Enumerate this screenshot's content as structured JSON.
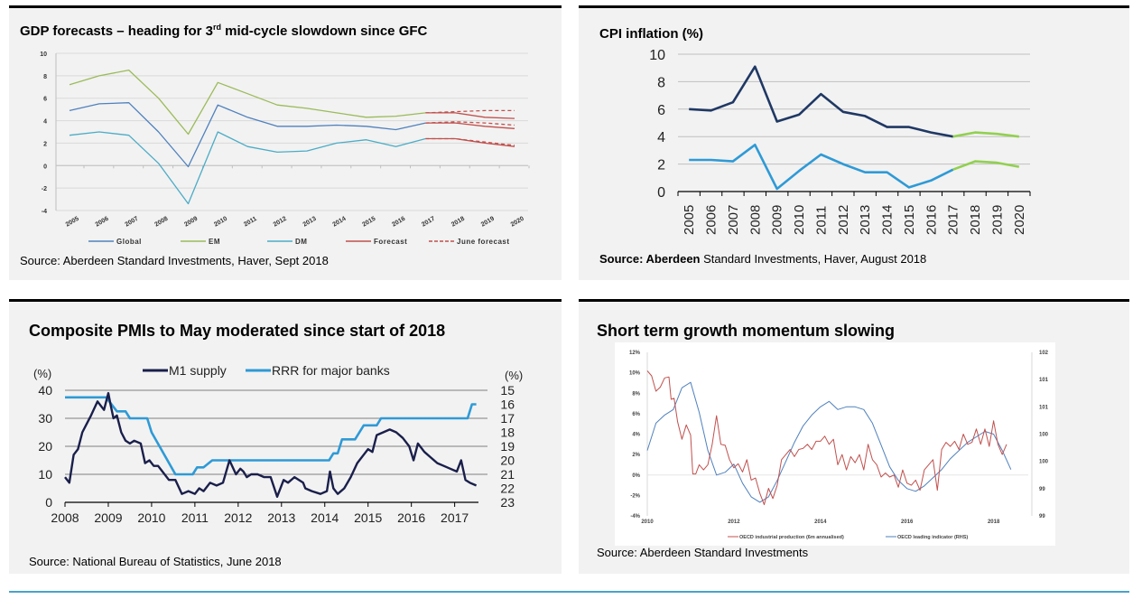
{
  "panels": {
    "gdp": {
      "title_pre": "GDP forecasts – heading for 3",
      "title_sup": "rd",
      "title_post": " mid-cycle slowdown since GFC",
      "source": "Source: Aberdeen Standard Investments, Haver, Sept 2018"
    },
    "cpi": {
      "title": "CPI inflation (%)",
      "source_bold": "Source: Aberdeen",
      "source_rest": " Standard Investments, Haver, August 2018"
    },
    "pmi": {
      "title": "Composite PMIs to May moderated since start of 2018",
      "source": "Source: National Bureau of Statistics, June 2018"
    },
    "momentum": {
      "title": "Short term growth momentum slowing",
      "source": "Source: Aberdeen Standard Investments"
    }
  },
  "colors": {
    "global": "#4f81bd",
    "em": "#9bbb59",
    "dm": "#4bacc6",
    "forecast": "#c0504d",
    "cpi_navy": "#1f3864",
    "cpi_blue": "#2e9ad6",
    "cpi_green": "#92d050",
    "m1": "#1a1f4b",
    "rrr": "#2e9ad6",
    "ip_red": "#c0504d",
    "cli_blue": "#4f81bd",
    "rule": "#4aa3c8"
  },
  "chart_data": [
    {
      "id": "gdp",
      "type": "line",
      "title": "GDP forecasts – heading for 3rd mid-cycle slowdown since GFC",
      "x": [
        "2005",
        "2006",
        "2007",
        "2008",
        "2009",
        "2010",
        "2011",
        "2012",
        "2013",
        "2014",
        "2015",
        "2016",
        "2017",
        "2018",
        "2019",
        "2020"
      ],
      "ylim": [
        -4,
        10
      ],
      "yticks": [
        "-4",
        "-2",
        "0",
        "2",
        "4",
        "6",
        "8",
        "10"
      ],
      "grid": true,
      "legend_position": "bottom",
      "series": [
        {
          "name": "Global",
          "key": "global",
          "values": [
            4.9,
            5.5,
            5.6,
            3.0,
            -0.1,
            5.4,
            4.3,
            3.5,
            3.5,
            3.6,
            3.5,
            3.2,
            3.8,
            null,
            null,
            null
          ]
        },
        {
          "name": "EM",
          "key": "em",
          "values": [
            7.2,
            8.0,
            8.5,
            6.0,
            2.8,
            7.4,
            6.4,
            5.4,
            5.1,
            4.7,
            4.3,
            4.4,
            4.7,
            null,
            null,
            null
          ]
        },
        {
          "name": "DM",
          "key": "dm",
          "values": [
            2.7,
            3.0,
            2.7,
            0.2,
            -3.4,
            3.0,
            1.7,
            1.2,
            1.3,
            2.0,
            2.3,
            1.7,
            2.4,
            null,
            null,
            null
          ]
        },
        {
          "name": "Forecast",
          "key": "forecast",
          "dashed": false,
          "lines": [
            {
              "x_start": "2017",
              "values": [
                4.7,
                4.7,
                4.3,
                4.2
              ]
            },
            {
              "x_start": "2017",
              "values": [
                3.8,
                3.8,
                3.5,
                3.3
              ]
            },
            {
              "x_start": "2017",
              "values": [
                2.4,
                2.4,
                2.0,
                1.7
              ]
            }
          ]
        },
        {
          "name": "June forecast",
          "key": "june",
          "dashed": true,
          "lines": [
            {
              "x_start": "2017",
              "values": [
                4.7,
                4.8,
                4.9,
                4.9
              ]
            },
            {
              "x_start": "2017",
              "values": [
                3.8,
                3.9,
                3.8,
                3.6
              ]
            },
            {
              "x_start": "2017",
              "values": [
                2.4,
                2.4,
                2.1,
                1.8
              ]
            }
          ]
        }
      ],
      "legend": [
        "Global",
        "EM",
        "DM",
        "Forecast",
        "June forecast"
      ]
    },
    {
      "id": "cpi",
      "type": "line",
      "title": "CPI inflation (%)",
      "x": [
        "2005",
        "2006",
        "2007",
        "2008",
        "2009",
        "2010",
        "2011",
        "2012",
        "2013",
        "2014",
        "2015",
        "2016",
        "2017",
        "2018",
        "2019",
        "2020"
      ],
      "ylim": [
        0,
        10
      ],
      "yticks": [
        "0",
        "2",
        "4",
        "6",
        "8",
        "10"
      ],
      "grid": true,
      "series": [
        {
          "name": "Upper series (actual)",
          "key": "cpi_navy",
          "values": [
            6.0,
            5.9,
            6.5,
            9.1,
            5.1,
            5.6,
            7.1,
            5.8,
            5.5,
            4.7,
            4.7,
            4.3,
            4.0,
            null,
            null,
            null
          ]
        },
        {
          "name": "Upper series (forecast)",
          "key": "cpi_green",
          "values": [
            null,
            null,
            null,
            null,
            null,
            null,
            null,
            null,
            null,
            null,
            null,
            null,
            4.0,
            4.3,
            4.2,
            4.0
          ]
        },
        {
          "name": "Lower series (actual)",
          "key": "cpi_blue",
          "values": [
            2.3,
            2.3,
            2.2,
            3.4,
            0.2,
            1.5,
            2.7,
            2.0,
            1.4,
            1.4,
            0.3,
            0.8,
            1.6,
            null,
            null,
            null
          ]
        },
        {
          "name": "Lower series (forecast)",
          "key": "cpi_green",
          "values": [
            null,
            null,
            null,
            null,
            null,
            null,
            null,
            null,
            null,
            null,
            null,
            null,
            1.6,
            2.2,
            2.1,
            1.8
          ]
        }
      ]
    },
    {
      "id": "pmi",
      "type": "line",
      "title": "Composite PMIs to May moderated since start of 2018",
      "xlabel": "",
      "ylabel_left": "(%)",
      "ylabel_right": "(%)",
      "x_ticks": [
        "2008",
        "2009",
        "2010",
        "2011",
        "2012",
        "2013",
        "2014",
        "2015",
        "2016",
        "2017"
      ],
      "xlim": [
        2008,
        2017.55
      ],
      "ylim_left": [
        0,
        40
      ],
      "yticks_left": [
        "0",
        "10",
        "20",
        "30",
        "40"
      ],
      "ylim_right": [
        23,
        15
      ],
      "yticks_right": [
        "15",
        "16",
        "17",
        "18",
        "19",
        "20",
        "21",
        "22",
        "23"
      ],
      "legend": [
        "M1 supply",
        "RRR for major banks"
      ],
      "legend_position": "top",
      "series": [
        {
          "name": "M1 supply",
          "key": "m1",
          "axis": "left",
          "x": [
            2008.0,
            2008.1,
            2008.2,
            2008.3,
            2008.4,
            2008.5,
            2008.6,
            2008.75,
            2008.9,
            2009.0,
            2009.05,
            2009.12,
            2009.2,
            2009.3,
            2009.4,
            2009.5,
            2009.6,
            2009.75,
            2009.85,
            2009.95,
            2010.05,
            2010.15,
            2010.25,
            2010.4,
            2010.55,
            2010.7,
            2010.85,
            2011.0,
            2011.1,
            2011.2,
            2011.35,
            2011.5,
            2011.65,
            2011.8,
            2011.95,
            2012.05,
            2012.12,
            2012.2,
            2012.3,
            2012.45,
            2012.6,
            2012.75,
            2012.9,
            2013.05,
            2013.15,
            2013.3,
            2013.5,
            2013.55,
            2013.7,
            2013.9,
            2014.05,
            2014.12,
            2014.2,
            2014.3,
            2014.45,
            2014.6,
            2014.75,
            2014.9,
            2015.0,
            2015.1,
            2015.2,
            2015.35,
            2015.5,
            2015.65,
            2015.8,
            2015.95,
            2016.05,
            2016.15,
            2016.3,
            2016.45,
            2016.6,
            2016.75,
            2016.9,
            2017.05,
            2017.15,
            2017.25,
            2017.35,
            2017.5
          ],
          "values": [
            9,
            7,
            17,
            19,
            25,
            28,
            31,
            36,
            33,
            39,
            35,
            30,
            31,
            25,
            22,
            21,
            22,
            21,
            14,
            15,
            13,
            13,
            11,
            8,
            8,
            3,
            4,
            3,
            5,
            4,
            7,
            6,
            7,
            15,
            10,
            12,
            11,
            9,
            10,
            10,
            9,
            9,
            2,
            8,
            7,
            9,
            7,
            5,
            4,
            3,
            4,
            11,
            5,
            3,
            5,
            9,
            14,
            17,
            19,
            18,
            24,
            25,
            26,
            25,
            23,
            20,
            15,
            21,
            18,
            16,
            14,
            13,
            12,
            11,
            15,
            8,
            7,
            6
          ]
        },
        {
          "name": "RRR for major banks",
          "key": "rrr",
          "axis": "right",
          "x": [
            2008.0,
            2008.95,
            2009.2,
            2009.4,
            2009.5,
            2009.9,
            2010.0,
            2010.55,
            2010.95,
            2011.05,
            2011.2,
            2011.4,
            2011.45,
            2014.1,
            2014.2,
            2014.3,
            2014.4,
            2014.6,
            2014.7,
            2014.9,
            2015.2,
            2015.3,
            2017.3,
            2017.4,
            2017.5
          ],
          "values": [
            15.5,
            15.5,
            16.5,
            16.5,
            17,
            17,
            18,
            21,
            21,
            20.5,
            20.5,
            20,
            20,
            20,
            19.5,
            19.5,
            18.5,
            18.5,
            18.5,
            17.5,
            17.5,
            17,
            17,
            16,
            16
          ]
        }
      ]
    },
    {
      "id": "momentum",
      "type": "line",
      "title": "Short term growth momentum slowing",
      "x_ticks": [
        "2010",
        "2012",
        "2014",
        "2016",
        "2018"
      ],
      "xlim": [
        2010,
        2018.8
      ],
      "ylim_left": [
        -4,
        12
      ],
      "yticks_left": [
        "-4%",
        "-2%",
        "0%",
        "2%",
        "4%",
        "6%",
        "8%",
        "10%",
        "12%"
      ],
      "ylim_right": [
        99,
        102
      ],
      "yticks_right": [
        "99",
        "99",
        "100",
        "100",
        "101",
        "101",
        "102"
      ],
      "legend": [
        "OECD industrial production (6m annualised)",
        "OECD leading indicator (RHS)"
      ],
      "legend_position": "bottom",
      "series": [
        {
          "name": "OECD industrial production (6m annualised)",
          "key": "ip_red",
          "axis": "left",
          "x": [
            2010.0,
            2010.1,
            2010.2,
            2010.3,
            2010.4,
            2010.5,
            2010.55,
            2010.62,
            2010.7,
            2010.8,
            2010.9,
            2011.0,
            2011.05,
            2011.12,
            2011.2,
            2011.3,
            2011.4,
            2011.5,
            2011.6,
            2011.7,
            2011.8,
            2011.9,
            2012.0,
            2012.1,
            2012.2,
            2012.3,
            2012.4,
            2012.5,
            2012.6,
            2012.7,
            2012.8,
            2012.9,
            2013.0,
            2013.1,
            2013.2,
            2013.3,
            2013.4,
            2013.5,
            2013.6,
            2013.7,
            2013.8,
            2013.9,
            2014.0,
            2014.1,
            2014.2,
            2014.3,
            2014.4,
            2014.5,
            2014.6,
            2014.7,
            2014.8,
            2014.9,
            2015.0,
            2015.1,
            2015.2,
            2015.3,
            2015.4,
            2015.5,
            2015.6,
            2015.7,
            2015.8,
            2015.9,
            2016.0,
            2016.1,
            2016.2,
            2016.3,
            2016.4,
            2016.5,
            2016.6,
            2016.7,
            2016.8,
            2016.9,
            2017.0,
            2017.1,
            2017.2,
            2017.3,
            2017.4,
            2017.5,
            2017.6,
            2017.7,
            2017.8,
            2017.9,
            2018.0,
            2018.1,
            2018.2,
            2018.3
          ],
          "values": [
            10.2,
            9.7,
            8.2,
            8.6,
            9.5,
            9.6,
            7.4,
            7.5,
            5.2,
            3.5,
            4.9,
            3.9,
            0.1,
            0.1,
            1.0,
            0.5,
            1.0,
            3.0,
            5.8,
            3.0,
            2.9,
            1.5,
            0.7,
            1.1,
            0.3,
            1.5,
            -0.5,
            -0.3,
            -1.8,
            -2.9,
            -1.3,
            -2.3,
            -1.0,
            1.5,
            2.0,
            2.5,
            1.8,
            2.5,
            2.6,
            3.0,
            2.5,
            3.3,
            3.3,
            3.8,
            3.0,
            3.5,
            1.0,
            2.0,
            0.5,
            1.8,
            1.2,
            2.0,
            0.5,
            3.0,
            1.5,
            1.0,
            -0.2,
            0.2,
            -0.2,
            0.0,
            -1.2,
            0.5,
            -0.8,
            -1.0,
            -0.5,
            -1.5,
            0.5,
            1.0,
            1.5,
            -1.5,
            2.5,
            3.2,
            2.8,
            3.3,
            2.5,
            4.0,
            3.0,
            3.2,
            4.5,
            3.0,
            4.5,
            2.8,
            5.3,
            3.0,
            2.0,
            3.0
          ]
        },
        {
          "name": "OECD leading indicator (RHS)",
          "key": "cli_blue",
          "axis": "right",
          "x": [
            2010.0,
            2010.2,
            2010.4,
            2010.6,
            2010.8,
            2011.0,
            2011.2,
            2011.4,
            2011.6,
            2011.8,
            2012.0,
            2012.2,
            2012.4,
            2012.6,
            2012.8,
            2013.0,
            2013.2,
            2013.4,
            2013.6,
            2013.8,
            2014.0,
            2014.2,
            2014.4,
            2014.6,
            2014.8,
            2015.0,
            2015.2,
            2015.4,
            2015.6,
            2015.8,
            2016.0,
            2016.2,
            2016.4,
            2016.6,
            2016.8,
            2017.0,
            2017.2,
            2017.4,
            2017.6,
            2017.8,
            2018.0,
            2018.2,
            2018.4
          ],
          "values": [
            100.2,
            100.7,
            100.85,
            100.95,
            101.35,
            101.45,
            100.9,
            100.2,
            99.75,
            99.8,
            99.95,
            99.6,
            99.35,
            99.25,
            99.35,
            99.65,
            100.0,
            100.35,
            100.65,
            100.85,
            101.0,
            101.1,
            100.95,
            101.0,
            101.0,
            100.95,
            100.7,
            100.3,
            99.9,
            99.65,
            99.5,
            99.45,
            99.55,
            99.7,
            99.85,
            100.05,
            100.2,
            100.35,
            100.45,
            100.55,
            100.5,
            100.2,
            99.85
          ]
        }
      ]
    }
  ]
}
